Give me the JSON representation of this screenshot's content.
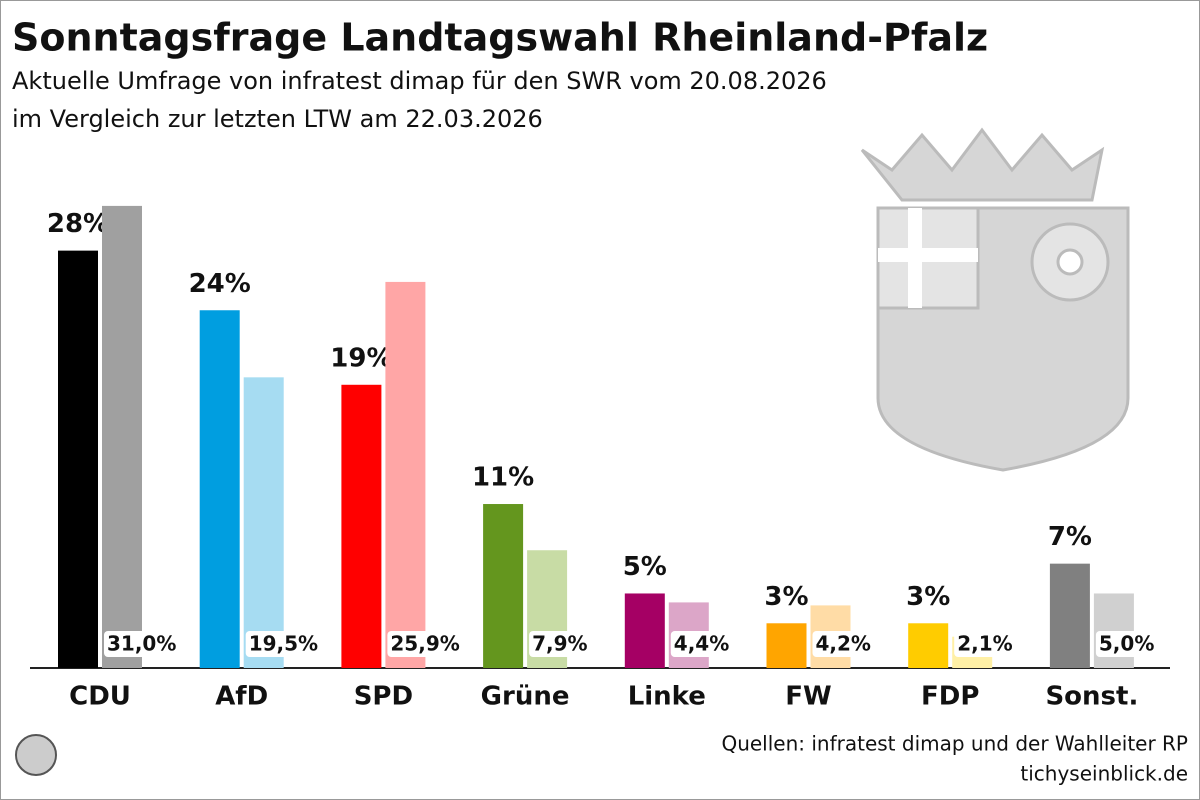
{
  "chart_data": {
    "type": "bar",
    "title": "Sonntagsfrage Landtagswahl Rheinland-Pfalz",
    "subtitle": [
      "Aktuelle Umfrage von infratest dimap für den SWR vom 20.08.2026",
      "im Vergleich zur letzten LTW am 22.03.2026"
    ],
    "source": [
      "Quellen: infratest dimap und der Wahlleiter RP",
      "tichyseinblick.de"
    ],
    "categories": [
      "CDU",
      "AfD",
      "SPD",
      "Grüne",
      "Linke",
      "FW",
      "FDP",
      "Sonst."
    ],
    "ylim": [
      0,
      32
    ],
    "series": [
      {
        "values": [
          28,
          24,
          19,
          11,
          5,
          3,
          3,
          7
        ],
        "value_labels": [
          "28%",
          "24%",
          "19%",
          "11%",
          "5%",
          "3%",
          "3%",
          "7%"
        ],
        "colors": [
          "#000000",
          "#009ee0",
          "#ff0000",
          "#64961e",
          "#a50064",
          "#ffa500",
          "#ffcc00",
          "#808080"
        ]
      },
      {
        "values": [
          31.0,
          19.5,
          25.9,
          7.9,
          4.4,
          4.2,
          2.1,
          5.0
        ],
        "value_labels": [
          "31,0%",
          "19,5%",
          "25,9%",
          "7,9%",
          "4,4%",
          "4,2%",
          "2,1%",
          "5,0%"
        ],
        "colors": [
          "#a0a0a0",
          "#a6dcf2",
          "#ffa6a6",
          "#c8dca5",
          "#dca6c8",
          "#ffdca6",
          "#fff0a6",
          "#d0d0d0"
        ]
      }
    ]
  }
}
